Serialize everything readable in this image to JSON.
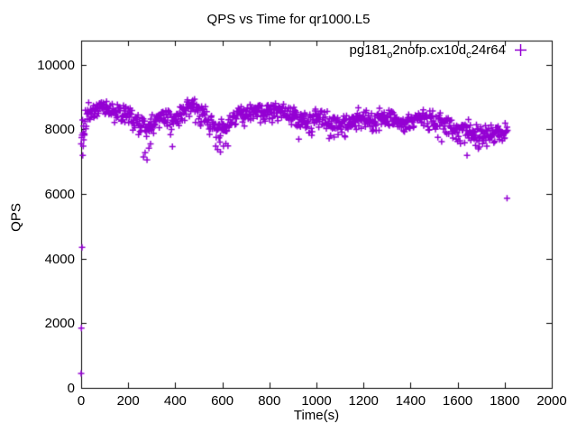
{
  "figure": {
    "background": "#ffffff",
    "text_color": "#000000",
    "axis_color": "#000000"
  },
  "chart_data": {
    "type": "scatter",
    "title": "QPS vs Time for qr1000.L5",
    "xlabel": "Time(s)",
    "ylabel": "QPS",
    "xlim": [
      0,
      2000
    ],
    "ylim": [
      0,
      10750
    ],
    "xticks": [
      0,
      200,
      400,
      600,
      800,
      1000,
      1200,
      1400,
      1600,
      1800,
      2000
    ],
    "yticks": [
      0,
      2000,
      4000,
      6000,
      8000,
      10000
    ],
    "grid": false,
    "legend_position": "top-right-inside",
    "marker": "plus",
    "marker_size_px": 7,
    "marker_color": "#9400d3",
    "series": [
      {
        "name": "pg181_o2nofp.cx10d_c24r64",
        "label_parts": [
          {
            "text": "pg181"
          },
          {
            "text": "o",
            "sub": true
          },
          {
            "text": "2nofp.cx10d"
          },
          {
            "text": "c",
            "sub": true
          },
          {
            "text": "24r64"
          }
        ],
        "t_start": 0,
        "t_end": 1812,
        "sample_interval_s": 2,
        "approx_point_count": 907,
        "noise_seed": 1337,
        "jitter_scale_qps": 260,
        "dip_probability": 0.04,
        "dip_streak_probability": 0.35,
        "dip_extra_qps": [
          120,
          500
        ],
        "qps_max_clamp": 9080,
        "trend_anchors": [
          [
            0,
            7600
          ],
          [
            6,
            8050
          ],
          [
            15,
            8300
          ],
          [
            30,
            8500
          ],
          [
            50,
            8600
          ],
          [
            80,
            8680
          ],
          [
            110,
            8650
          ],
          [
            140,
            8560
          ],
          [
            170,
            8500
          ],
          [
            200,
            8450
          ],
          [
            230,
            8300
          ],
          [
            260,
            8150
          ],
          [
            290,
            8000
          ],
          [
            320,
            8300
          ],
          [
            350,
            8400
          ],
          [
            380,
            8400
          ],
          [
            410,
            8350
          ],
          [
            440,
            8600
          ],
          [
            470,
            8700
          ],
          [
            500,
            8600
          ],
          [
            530,
            8450
          ],
          [
            560,
            8250
          ],
          [
            590,
            8100
          ],
          [
            620,
            8150
          ],
          [
            650,
            8350
          ],
          [
            680,
            8500
          ],
          [
            710,
            8550
          ],
          [
            740,
            8600
          ],
          [
            770,
            8550
          ],
          [
            800,
            8600
          ],
          [
            830,
            8550
          ],
          [
            860,
            8500
          ],
          [
            890,
            8450
          ],
          [
            920,
            8350
          ],
          [
            950,
            8350
          ],
          [
            980,
            8400
          ],
          [
            1010,
            8400
          ],
          [
            1040,
            8350
          ],
          [
            1070,
            8200
          ],
          [
            1100,
            8100
          ],
          [
            1130,
            8200
          ],
          [
            1160,
            8300
          ],
          [
            1190,
            8350
          ],
          [
            1220,
            8300
          ],
          [
            1250,
            8250
          ],
          [
            1280,
            8350
          ],
          [
            1310,
            8400
          ],
          [
            1340,
            8300
          ],
          [
            1370,
            8200
          ],
          [
            1400,
            8250
          ],
          [
            1430,
            8350
          ],
          [
            1460,
            8400
          ],
          [
            1490,
            8300
          ],
          [
            1520,
            8200
          ],
          [
            1550,
            8150
          ],
          [
            1580,
            8050
          ],
          [
            1610,
            7950
          ],
          [
            1640,
            8000
          ],
          [
            1670,
            7900
          ],
          [
            1700,
            7850
          ],
          [
            1730,
            7900
          ],
          [
            1760,
            7950
          ],
          [
            1790,
            7870
          ],
          [
            1812,
            7870
          ]
        ],
        "outliers": [
          [
            0,
            450
          ],
          [
            1,
            1850
          ],
          [
            4,
            4350
          ],
          [
            7,
            7200
          ],
          [
            9,
            7480
          ],
          [
            11,
            7680
          ],
          [
            14,
            7860
          ],
          [
            265,
            7150
          ],
          [
            272,
            7280
          ],
          [
            280,
            7060
          ],
          [
            288,
            7420
          ],
          [
            295,
            7550
          ],
          [
            580,
            7380
          ],
          [
            592,
            7300
          ],
          [
            605,
            7480
          ],
          [
            615,
            7560
          ],
          [
            925,
            7700
          ],
          [
            1075,
            7760
          ],
          [
            1120,
            7800
          ],
          [
            1640,
            7200
          ],
          [
            1724,
            7480
          ],
          [
            1810,
            5870
          ]
        ]
      }
    ]
  }
}
